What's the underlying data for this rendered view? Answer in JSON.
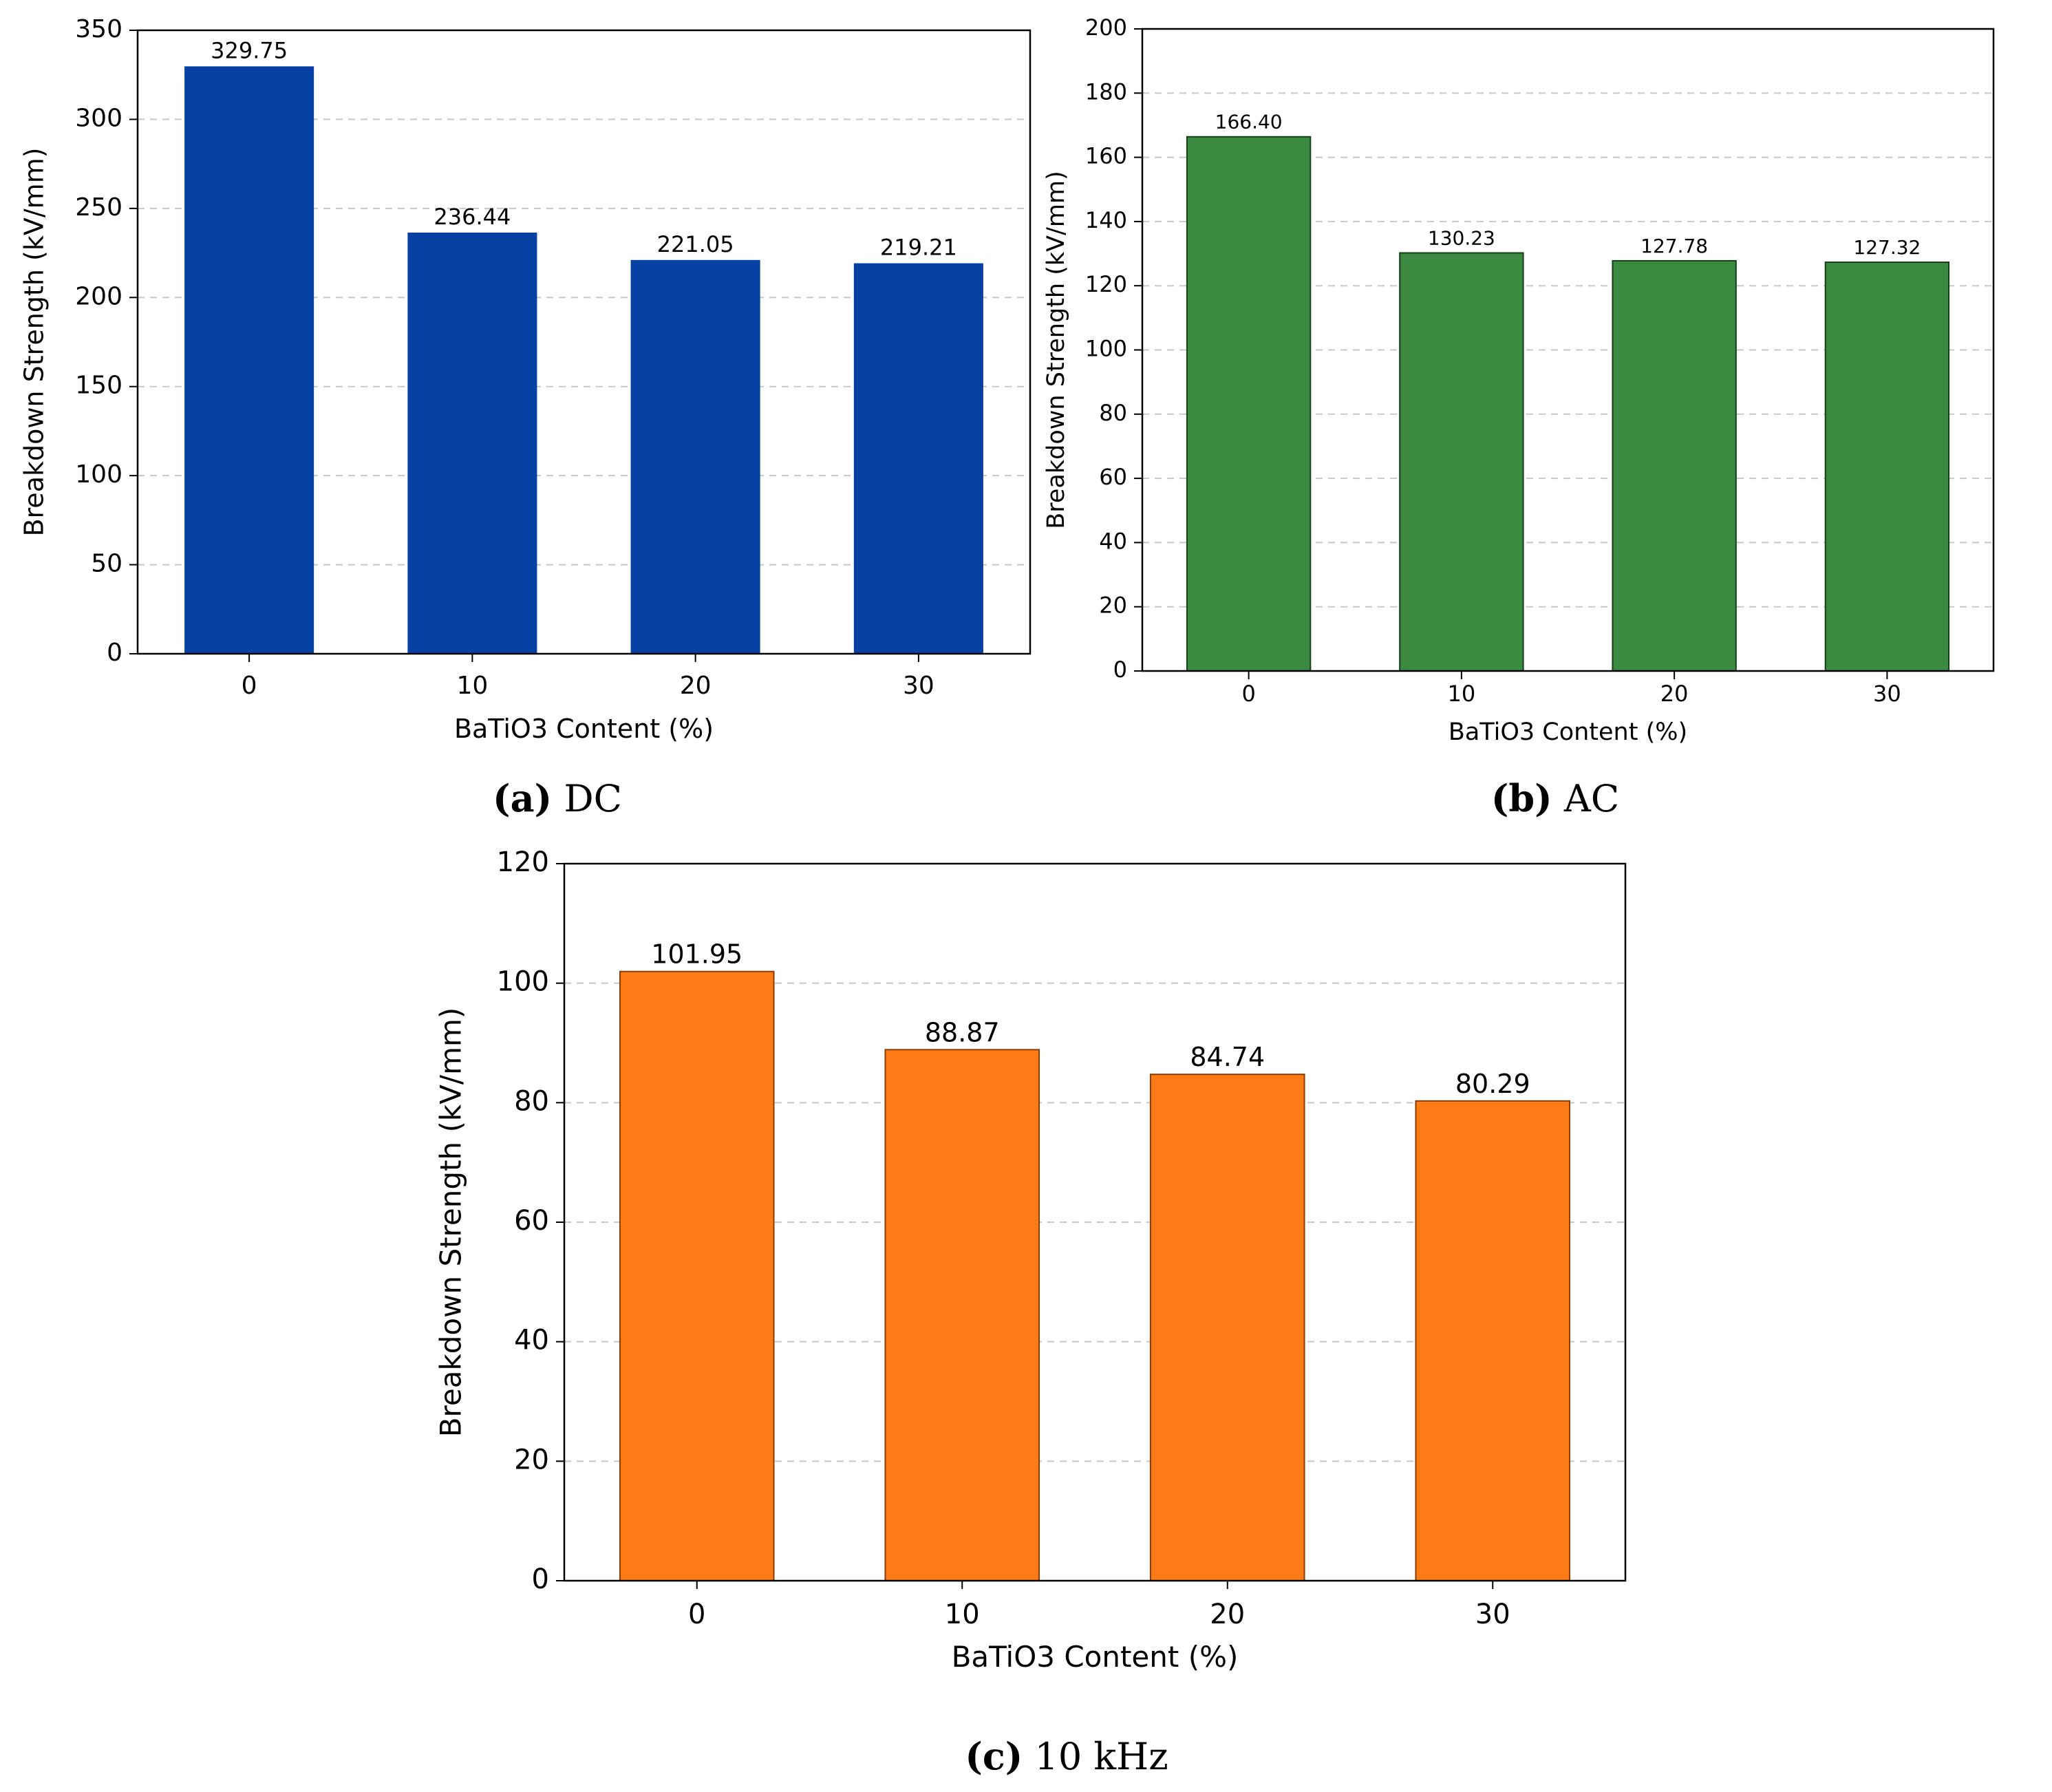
{
  "chart_data": [
    {
      "type": "bar",
      "categories": [
        "0",
        "10",
        "20",
        "30"
      ],
      "values": [
        329.75,
        236.44,
        221.05,
        219.21
      ],
      "data_labels": [
        "329.75",
        "236.44",
        "221.05",
        "219.21"
      ],
      "xlabel": "BaTiO3 Content (%)",
      "ylabel": "Breakdown Strength (kV/mm)",
      "ylim": [
        0,
        350
      ],
      "yticks": [
        "0",
        "50",
        "100",
        "150",
        "200",
        "250",
        "300",
        "350"
      ],
      "grid": "y-dashed",
      "bar_color": "#0641a3",
      "caption_letter": "(a)",
      "caption_text": "DC"
    },
    {
      "type": "bar",
      "categories": [
        "0",
        "10",
        "20",
        "30"
      ],
      "values": [
        166.4,
        130.23,
        127.78,
        127.32
      ],
      "data_labels": [
        "166.40",
        "130.23",
        "127.78",
        "127.32"
      ],
      "xlabel": "BaTiO3 Content (%)",
      "ylabel": "Breakdown Strength (kV/mm)",
      "ylim": [
        0,
        200
      ],
      "yticks": [
        "0",
        "20",
        "40",
        "60",
        "80",
        "100",
        "120",
        "140",
        "160",
        "180",
        "200"
      ],
      "grid": "y-dashed",
      "bar_color": "#3c8a42",
      "caption_letter": "(b)",
      "caption_text": "AC"
    },
    {
      "type": "bar",
      "categories": [
        "0",
        "10",
        "20",
        "30"
      ],
      "values": [
        101.95,
        88.87,
        84.74,
        80.29
      ],
      "data_labels": [
        "101.95",
        "88.87",
        "84.74",
        "80.29"
      ],
      "xlabel": "BaTiO3 Content (%)",
      "ylabel": "Breakdown Strength (kV/mm)",
      "ylim": [
        0,
        120
      ],
      "yticks": [
        "0",
        "20",
        "40",
        "60",
        "80",
        "100",
        "120"
      ],
      "grid": "y-dashed",
      "bar_color": "#fd7b16",
      "caption_letter": "(c)",
      "caption_text": "10 kHz"
    }
  ]
}
